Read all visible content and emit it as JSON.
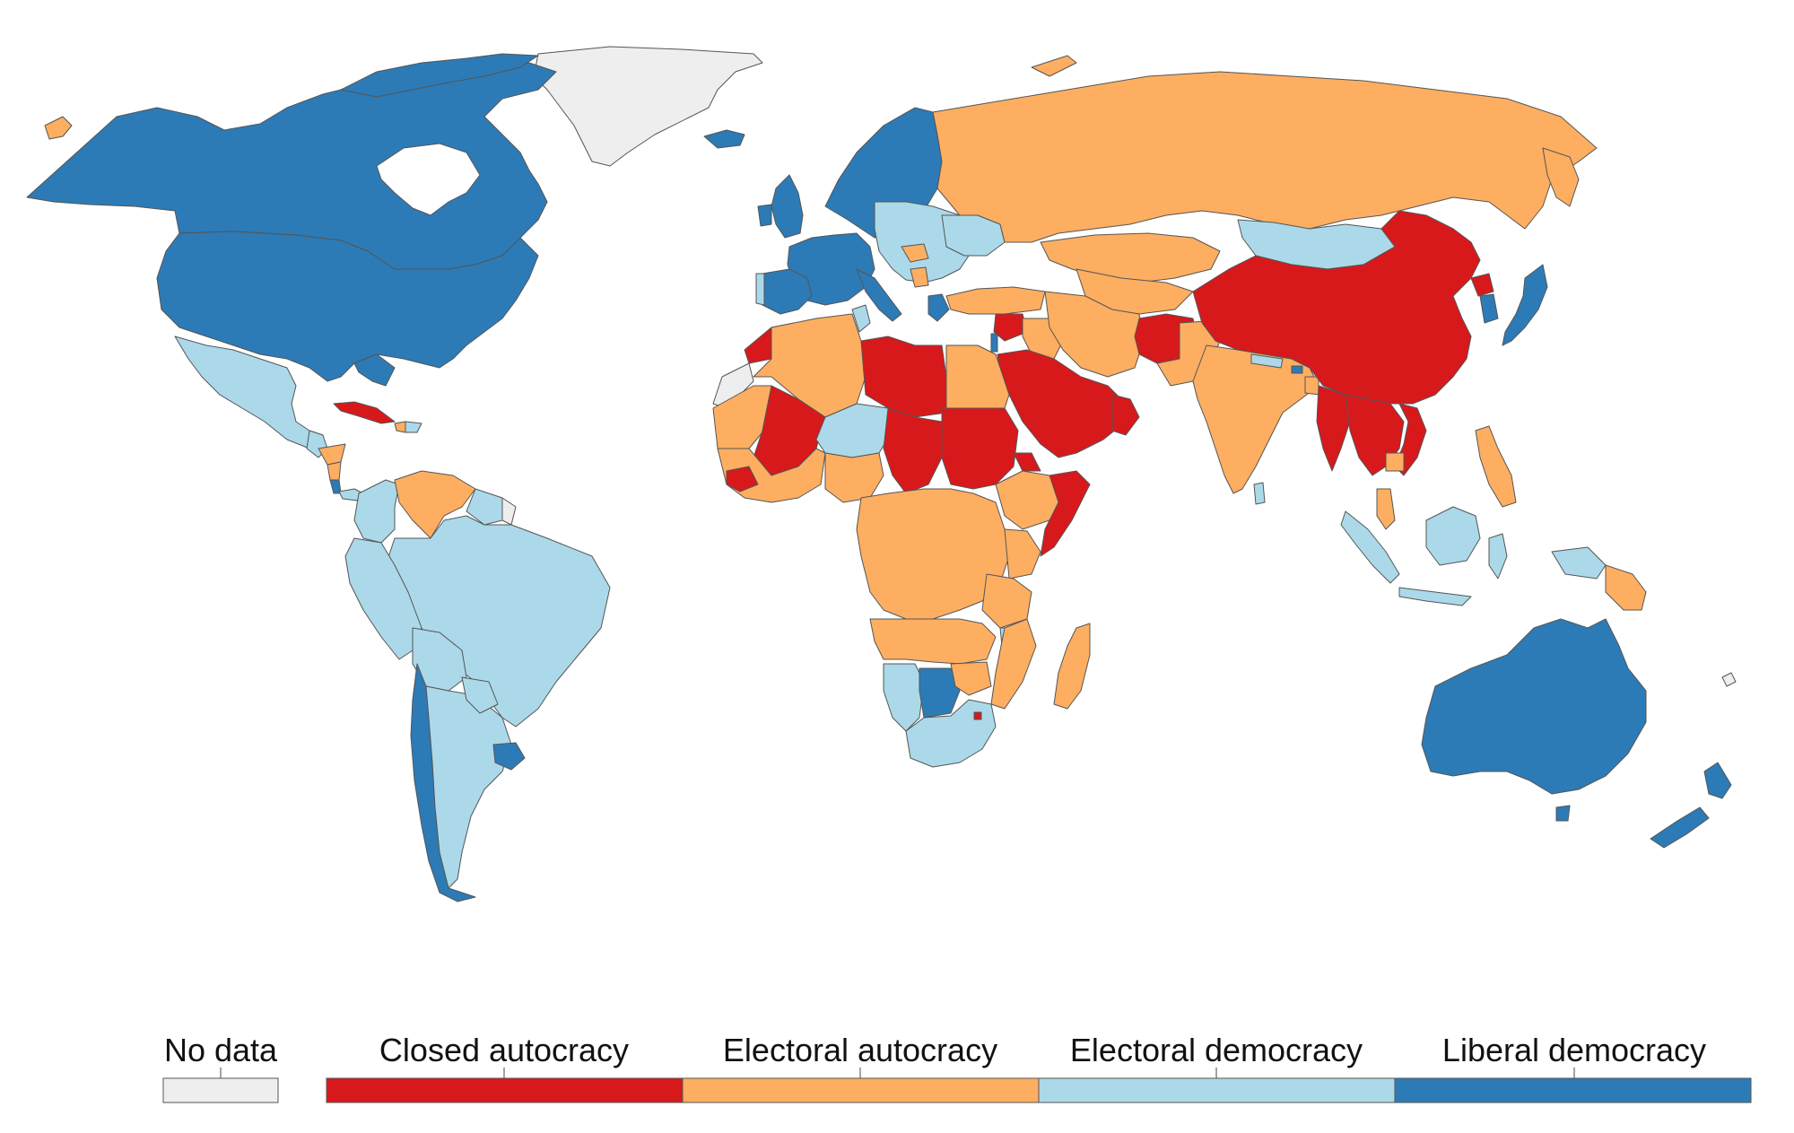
{
  "map": {
    "colors": {
      "no_data": "#eeeeee",
      "closed_autocracy": "#d7191c",
      "electoral_autocracy": "#fdae61",
      "electoral_democracy": "#abd9e9",
      "liberal_democracy": "#2c7bb6",
      "border": "#555555"
    }
  },
  "legend": {
    "no_data": "No data",
    "categories": [
      {
        "key": "closed_autocracy",
        "label": "Closed autocracy",
        "color": "#d7191c"
      },
      {
        "key": "electoral_autocracy",
        "label": "Electoral autocracy",
        "color": "#fdae61"
      },
      {
        "key": "electoral_democracy",
        "label": "Electoral democracy",
        "color": "#abd9e9"
      },
      {
        "key": "liberal_democracy",
        "label": "Liberal democracy",
        "color": "#2c7bb6"
      }
    ]
  }
}
